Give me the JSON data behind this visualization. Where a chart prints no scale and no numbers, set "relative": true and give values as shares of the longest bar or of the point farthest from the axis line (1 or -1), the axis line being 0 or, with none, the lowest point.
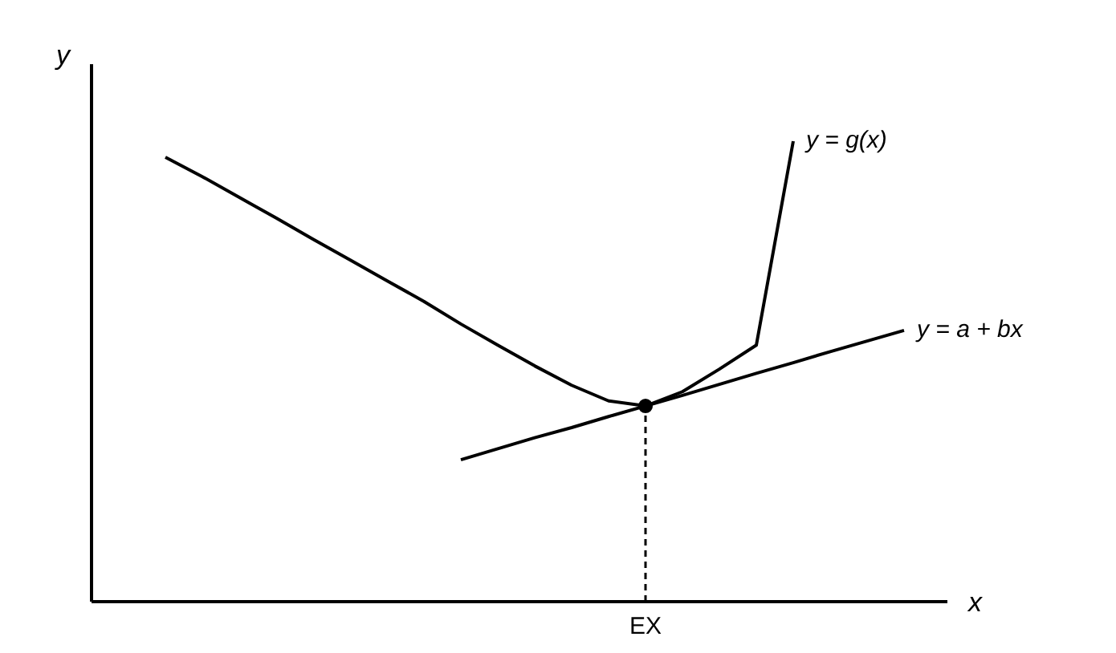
{
  "chart_data": {
    "type": "line",
    "relative": true,
    "xlabel": "x",
    "ylabel": "y",
    "categories": [
      null,
      null,
      null,
      null,
      null,
      null,
      null,
      null,
      null,
      null,
      null,
      null,
      null,
      null,
      null,
      null,
      null,
      null,
      null,
      null,
      null,
      null,
      null,
      null
    ],
    "series": [
      {
        "name": "y = g(x)",
        "color": "#000000",
        "values": [
          null,
          null,
          0.965,
          0.923,
          0.878,
          0.833,
          0.787,
          0.742,
          0.697,
          0.652,
          0.603,
          0.557,
          0.512,
          0.47,
          0.436,
          0.425,
          0.456,
          0.505,
          0.557,
          1.0,
          null,
          null,
          null,
          null
        ]
      },
      {
        "name": "y = a + bx",
        "color": "#000000",
        "values": [
          null,
          null,
          null,
          null,
          null,
          null,
          null,
          null,
          null,
          null,
          0.308,
          0.332,
          0.356,
          0.378,
          0.402,
          0.425,
          0.448,
          0.472,
          0.496,
          0.519,
          0.543,
          0.566,
          0.589,
          null
        ]
      }
    ],
    "annotations": [
      "EX"
    ],
    "legend": false,
    "marker": "none",
    "line_style": "solid"
  }
}
